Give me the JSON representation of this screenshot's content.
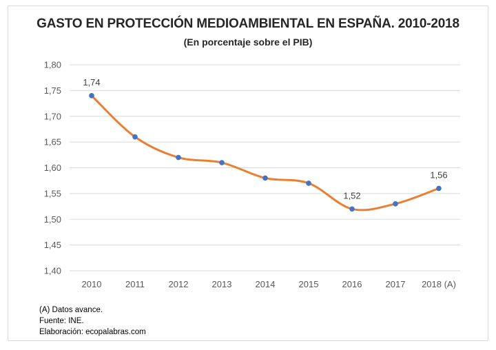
{
  "chart_data": {
    "type": "line",
    "title": "GASTO EN PROTECCIÓN MEDIOAMBIENTAL EN ESPAÑA. 2010-2018",
    "subtitle": "(En porcentaje sobre el PIB)",
    "categories": [
      "2010",
      "2011",
      "2012",
      "2013",
      "2014",
      "2015",
      "2016",
      "2017",
      "2018 (A)"
    ],
    "values": [
      1.74,
      1.66,
      1.62,
      1.61,
      1.58,
      1.57,
      1.52,
      1.53,
      1.56
    ],
    "data_labels": [
      {
        "index": 0,
        "text": "1,74"
      },
      {
        "index": 6,
        "text": "1,52"
      },
      {
        "index": 8,
        "text": "1,56"
      }
    ],
    "ylim": [
      1.4,
      1.8
    ],
    "yticks": [
      "1,40",
      "1,45",
      "1,50",
      "1,55",
      "1,60",
      "1,65",
      "1,70",
      "1,75",
      "1,80"
    ],
    "xlabel": "",
    "ylabel": "",
    "grid": "horizontal",
    "smooth": true,
    "line_color": "#ed7d31",
    "marker_color": "#4472c4",
    "grid_color": "#d9d9d9"
  },
  "notes": [
    "(A) Datos avance.",
    "Fuente: INE.",
    "Elaboración: ecopalabras.com"
  ]
}
